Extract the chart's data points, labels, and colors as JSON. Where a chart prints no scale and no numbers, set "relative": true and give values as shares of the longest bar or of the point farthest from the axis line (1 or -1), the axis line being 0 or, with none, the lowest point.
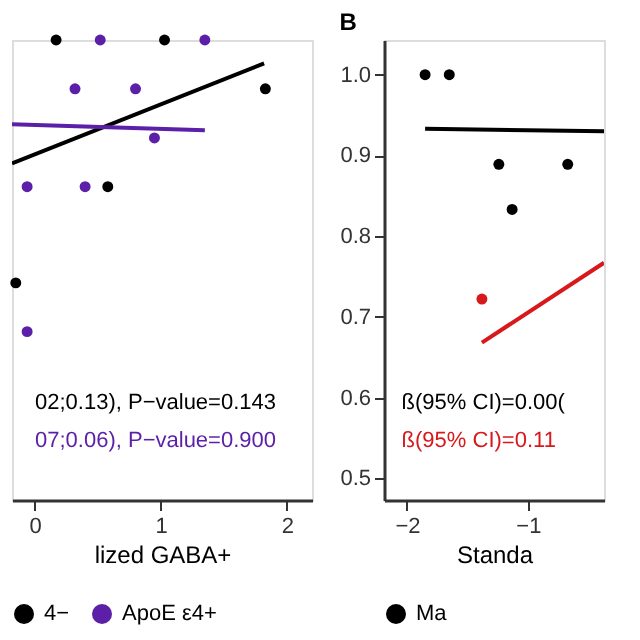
{
  "chart_data": [
    {
      "type": "scatter",
      "relative": true,
      "xlabel": "lized GABA+",
      "xlim": [
        -0.18,
        2.2
      ],
      "xticks": [
        0,
        1,
        2
      ],
      "tick_labels": "x",
      "grid": false,
      "legend": "bottom",
      "marker": "circle",
      "annotations": [
        "02;0.13), P−value=0.143",
        "07;0.06), P−value=0.900"
      ],
      "series": [
        {
          "name": "4−",
          "color": "#000000",
          "x": [
            0.17,
            1.03,
            1.83,
            0.58,
            -0.15
          ],
          "values": [
            1.0,
            1.0,
            0.894,
            0.681,
            0.472
          ]
        },
        {
          "name": "ApoE ε4+",
          "color": "#5b1fa8",
          "x": [
            0.52,
            1.35,
            0.32,
            0.8,
            0.95,
            -0.06,
            0.4,
            -0.06
          ],
          "values": [
            1.0,
            1.0,
            0.894,
            0.894,
            0.787,
            0.681,
            0.681,
            0.366
          ]
        },
        {
          "type": "line",
          "marker": "none",
          "color": "#000000",
          "x": [
            -0.18,
            1.82
          ],
          "values": [
            0.732,
            0.949
          ]
        },
        {
          "type": "line",
          "marker": "none",
          "color": "#5b1fa8",
          "x": [
            -0.18,
            1.35
          ],
          "values": [
            0.817,
            0.804
          ]
        }
      ]
    },
    {
      "type": "scatter",
      "title": "B",
      "xlabel": "Standa",
      "xlim": [
        -2.19,
        -0.37
      ],
      "xticks": [
        -2,
        -1
      ],
      "ylim": [
        0.473,
        1.043
      ],
      "yticks": [
        0.5,
        0.6,
        0.7,
        0.8,
        0.9,
        {
          "value": 1,
          "label": "1.0"
        }
      ],
      "grid": false,
      "legend": "bottom",
      "marker": "circle",
      "annotations": [
        "ß(95% CI)=0.00(",
        "ß(95% CI)=0.11"
      ],
      "series": [
        {
          "name": "Ma",
          "color": "#000000",
          "x": [
            -1.85,
            -1.65,
            -1.24,
            -0.67,
            -1.13
          ],
          "values": [
            1.0,
            1.0,
            0.889,
            0.889,
            0.833
          ]
        },
        {
          "color": "#d7191c",
          "x": [
            -1.38
          ],
          "values": [
            0.722
          ]
        },
        {
          "type": "line",
          "marker": "none",
          "color": "#000000",
          "x": [
            -1.85,
            -0.37
          ],
          "values": [
            0.933,
            0.93
          ]
        },
        {
          "type": "line",
          "marker": "none",
          "color": "#d7191c",
          "x": [
            -1.38,
            -0.37
          ],
          "values": [
            0.668,
            0.767
          ]
        }
      ]
    }
  ]
}
